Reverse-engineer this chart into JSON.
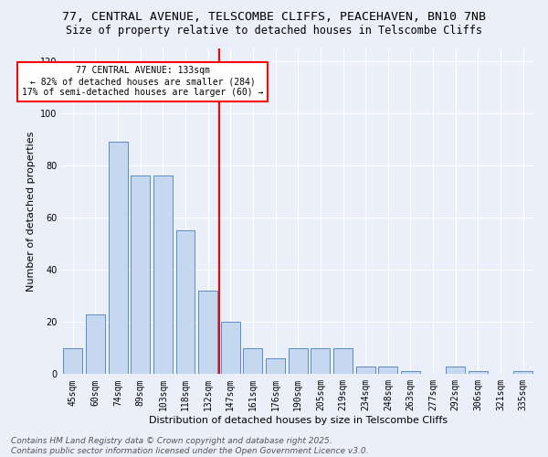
{
  "title1": "77, CENTRAL AVENUE, TELSCOMBE CLIFFS, PEACEHAVEN, BN10 7NB",
  "title2": "Size of property relative to detached houses in Telscombe Cliffs",
  "xlabel": "Distribution of detached houses by size in Telscombe Cliffs",
  "ylabel": "Number of detached properties",
  "categories": [
    "45sqm",
    "60sqm",
    "74sqm",
    "89sqm",
    "103sqm",
    "118sqm",
    "132sqm",
    "147sqm",
    "161sqm",
    "176sqm",
    "190sqm",
    "205sqm",
    "219sqm",
    "234sqm",
    "248sqm",
    "263sqm",
    "277sqm",
    "292sqm",
    "306sqm",
    "321sqm",
    "335sqm"
  ],
  "values": [
    10,
    23,
    89,
    76,
    76,
    55,
    32,
    20,
    10,
    6,
    10,
    10,
    10,
    3,
    3,
    1,
    0,
    3,
    1,
    0,
    1
  ],
  "bar_color": "#c5d8f0",
  "bar_edge_color": "#5b8cc8",
  "vline_color": "red",
  "annotation_title": "77 CENTRAL AVENUE: 133sqm",
  "annotation_line1": "← 82% of detached houses are smaller (284)",
  "annotation_line2": "17% of semi-detached houses are larger (60) →",
  "annotation_box_color": "white",
  "annotation_box_edge": "red",
  "ylim": [
    0,
    125
  ],
  "yticks": [
    0,
    20,
    40,
    60,
    80,
    100,
    120
  ],
  "background_color": "#eaeff9",
  "footer1": "Contains HM Land Registry data © Crown copyright and database right 2025.",
  "footer2": "Contains public sector information licensed under the Open Government Licence v3.0.",
  "title_fontsize": 9.5,
  "subtitle_fontsize": 8.5,
  "tick_fontsize": 7,
  "ylabel_fontsize": 8,
  "xlabel_fontsize": 8,
  "footer_fontsize": 6.5
}
